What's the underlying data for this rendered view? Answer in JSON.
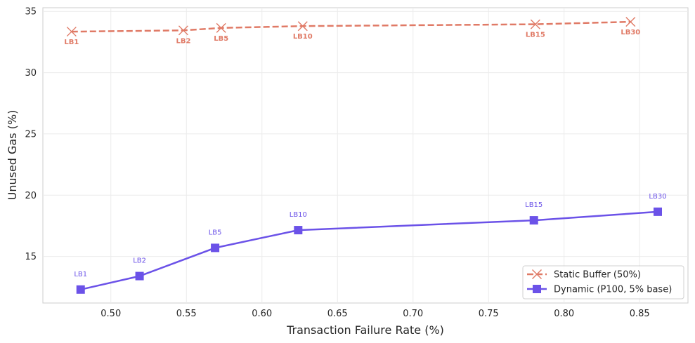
{
  "chart_data": {
    "type": "line",
    "title": "",
    "xlabel": "Transaction Failure Rate (%)",
    "ylabel": "Unused Gas (%)",
    "xlim": [
      0.455,
      0.882
    ],
    "ylim": [
      11.2,
      35.3
    ],
    "xticks": [
      "0.50",
      "0.55",
      "0.60",
      "0.65",
      "0.70",
      "0.75",
      "0.80",
      "0.85"
    ],
    "yticks": [
      "15",
      "20",
      "25",
      "30",
      "35"
    ],
    "grid": true,
    "legend_position": "lower-right",
    "series": [
      {
        "name": "Static Buffer (50%)",
        "color": "#E07A66",
        "line_style": "dashed",
        "marker": "x",
        "points": [
          {
            "label": "LB1",
            "x": 0.474,
            "y": 33.35
          },
          {
            "label": "LB2",
            "x": 0.548,
            "y": 33.45
          },
          {
            "label": "LB5",
            "x": 0.573,
            "y": 33.65
          },
          {
            "label": "LB10",
            "x": 0.627,
            "y": 33.8
          },
          {
            "label": "LB15",
            "x": 0.781,
            "y": 33.95
          },
          {
            "label": "LB30",
            "x": 0.844,
            "y": 34.15
          }
        ]
      },
      {
        "name": "Dynamic (P100, 5% base)",
        "color": "#6B52E8",
        "line_style": "solid",
        "marker": "square",
        "points": [
          {
            "label": "LB1",
            "x": 0.48,
            "y": 12.3
          },
          {
            "label": "LB2",
            "x": 0.519,
            "y": 13.4
          },
          {
            "label": "LB5",
            "x": 0.569,
            "y": 15.7
          },
          {
            "label": "LB10",
            "x": 0.624,
            "y": 17.15
          },
          {
            "label": "LB15",
            "x": 0.78,
            "y": 17.95
          },
          {
            "label": "LB30",
            "x": 0.862,
            "y": 18.65
          }
        ]
      }
    ]
  }
}
